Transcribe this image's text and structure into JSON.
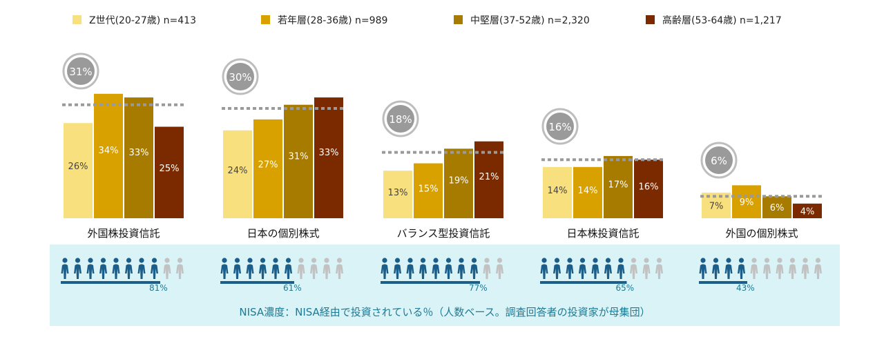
{
  "chart_data": {
    "type": "bar",
    "series": [
      {
        "name": "Z世代(20-27歳) n=413",
        "color": "#F9E07E",
        "values": [
          26,
          24,
          13,
          14,
          7
        ],
        "labels": [
          "26%",
          "24%",
          "13%",
          "14%",
          "7%"
        ]
      },
      {
        "name": "若年層(28-36歳) n=989",
        "color": "#D9A100",
        "values": [
          34,
          27,
          15,
          14,
          9
        ],
        "labels": [
          "34%",
          "27%",
          "15%",
          "14%",
          "9%"
        ]
      },
      {
        "name": "中堅層(37-52歳) n=2,320",
        "color": "#A77A00",
        "values": [
          33,
          31,
          19,
          17,
          6
        ],
        "labels": [
          "33%",
          "31%",
          "19%",
          "17%",
          "6%"
        ]
      },
      {
        "name": "高齢層(53-64歳) n=1,217",
        "color": "#7B2A00",
        "values": [
          25,
          33,
          21,
          16,
          4
        ],
        "labels": [
          "25%",
          "33%",
          "21%",
          "16%",
          "4%"
        ]
      }
    ],
    "categories": [
      "外国株投資信託",
      "日本の個別株式",
      "バランス型投資信託",
      "日本株投資信託",
      "外国の個別株式"
    ],
    "averages": [
      31,
      30,
      18,
      16,
      6
    ],
    "average_labels": [
      "31%",
      "30%",
      "18%",
      "16%",
      "6%"
    ],
    "nisa_share": [
      81,
      61,
      77,
      65,
      43
    ],
    "nisa_share_labels": [
      "81%",
      "61%",
      "77%",
      "65%",
      "43%"
    ],
    "ylim": [
      0,
      40
    ],
    "footer_note": "NISA濃度：NISA経由で投資されている％（人数ベース。調査回答者の投資家が母集団）",
    "colors": {
      "average_line": "#9A9A9A",
      "circle": "#9A9A9A",
      "people_on": "#1B5E8A",
      "people_off": "#C2C2C2",
      "panel": "#D9F3F7",
      "accent_text": "#1D7A94"
    }
  }
}
